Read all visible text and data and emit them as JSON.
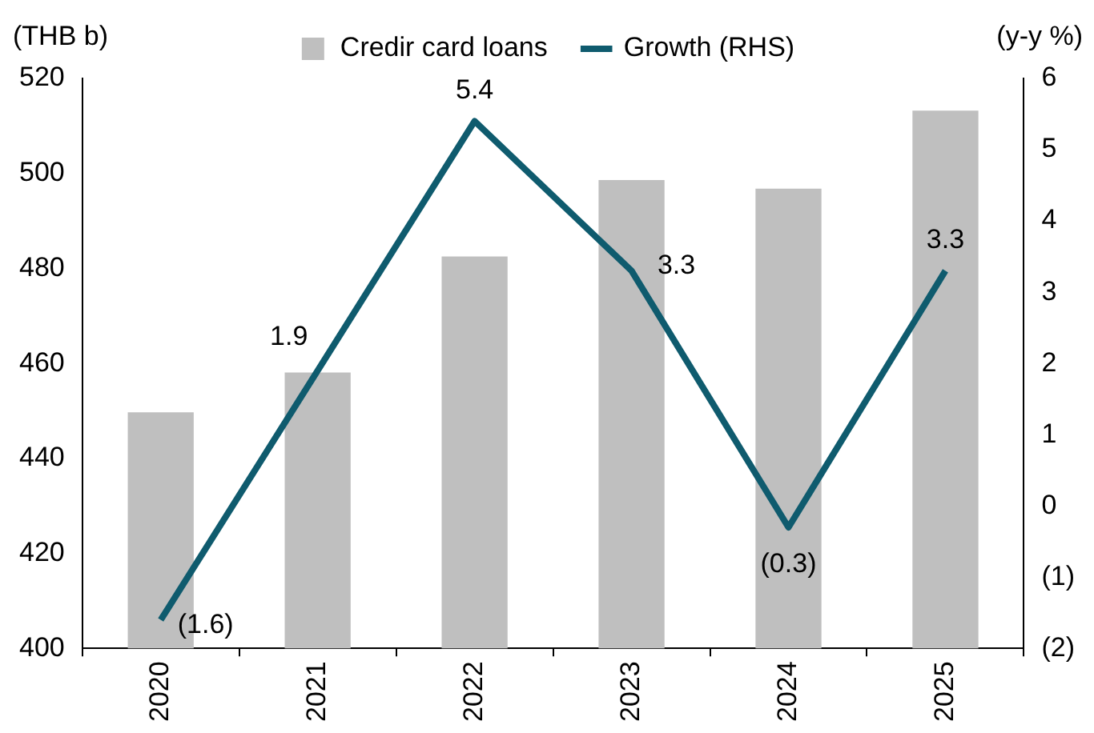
{
  "chart_data": {
    "type": "bar",
    "ylabel": "(THB b)",
    "y2label": "(y-y %)",
    "categories": [
      "2020",
      "2021",
      "2022",
      "2023",
      "2024",
      "2025"
    ],
    "series": [
      {
        "name": "Credir card loans",
        "color": "#bfbfbf",
        "values": [
          449.7,
          458.1,
          482.5,
          498.6,
          496.8,
          513.2
        ]
      },
      {
        "name": "Growth (RHS)",
        "type": "line",
        "axis": "y2",
        "color": "#0f5b6e",
        "values": [
          -1.6,
          1.9,
          5.4,
          3.3,
          -0.3,
          3.3
        ],
        "value_labels": [
          "(1.6)",
          "1.9",
          "5.4",
          "3.3",
          "(0.3)",
          "3.3"
        ]
      }
    ],
    "ylim": [
      400,
      520
    ],
    "yticks": [
      400,
      420,
      440,
      460,
      480,
      500,
      520
    ],
    "y2lim": [
      -2,
      6
    ],
    "y2ticks": [
      {
        "value": -2,
        "label": "(2)"
      },
      {
        "value": -1,
        "label": "(1)"
      },
      0,
      1,
      2,
      3,
      4,
      5,
      6
    ],
    "grid": false,
    "legend": "top",
    "marker": "none"
  }
}
